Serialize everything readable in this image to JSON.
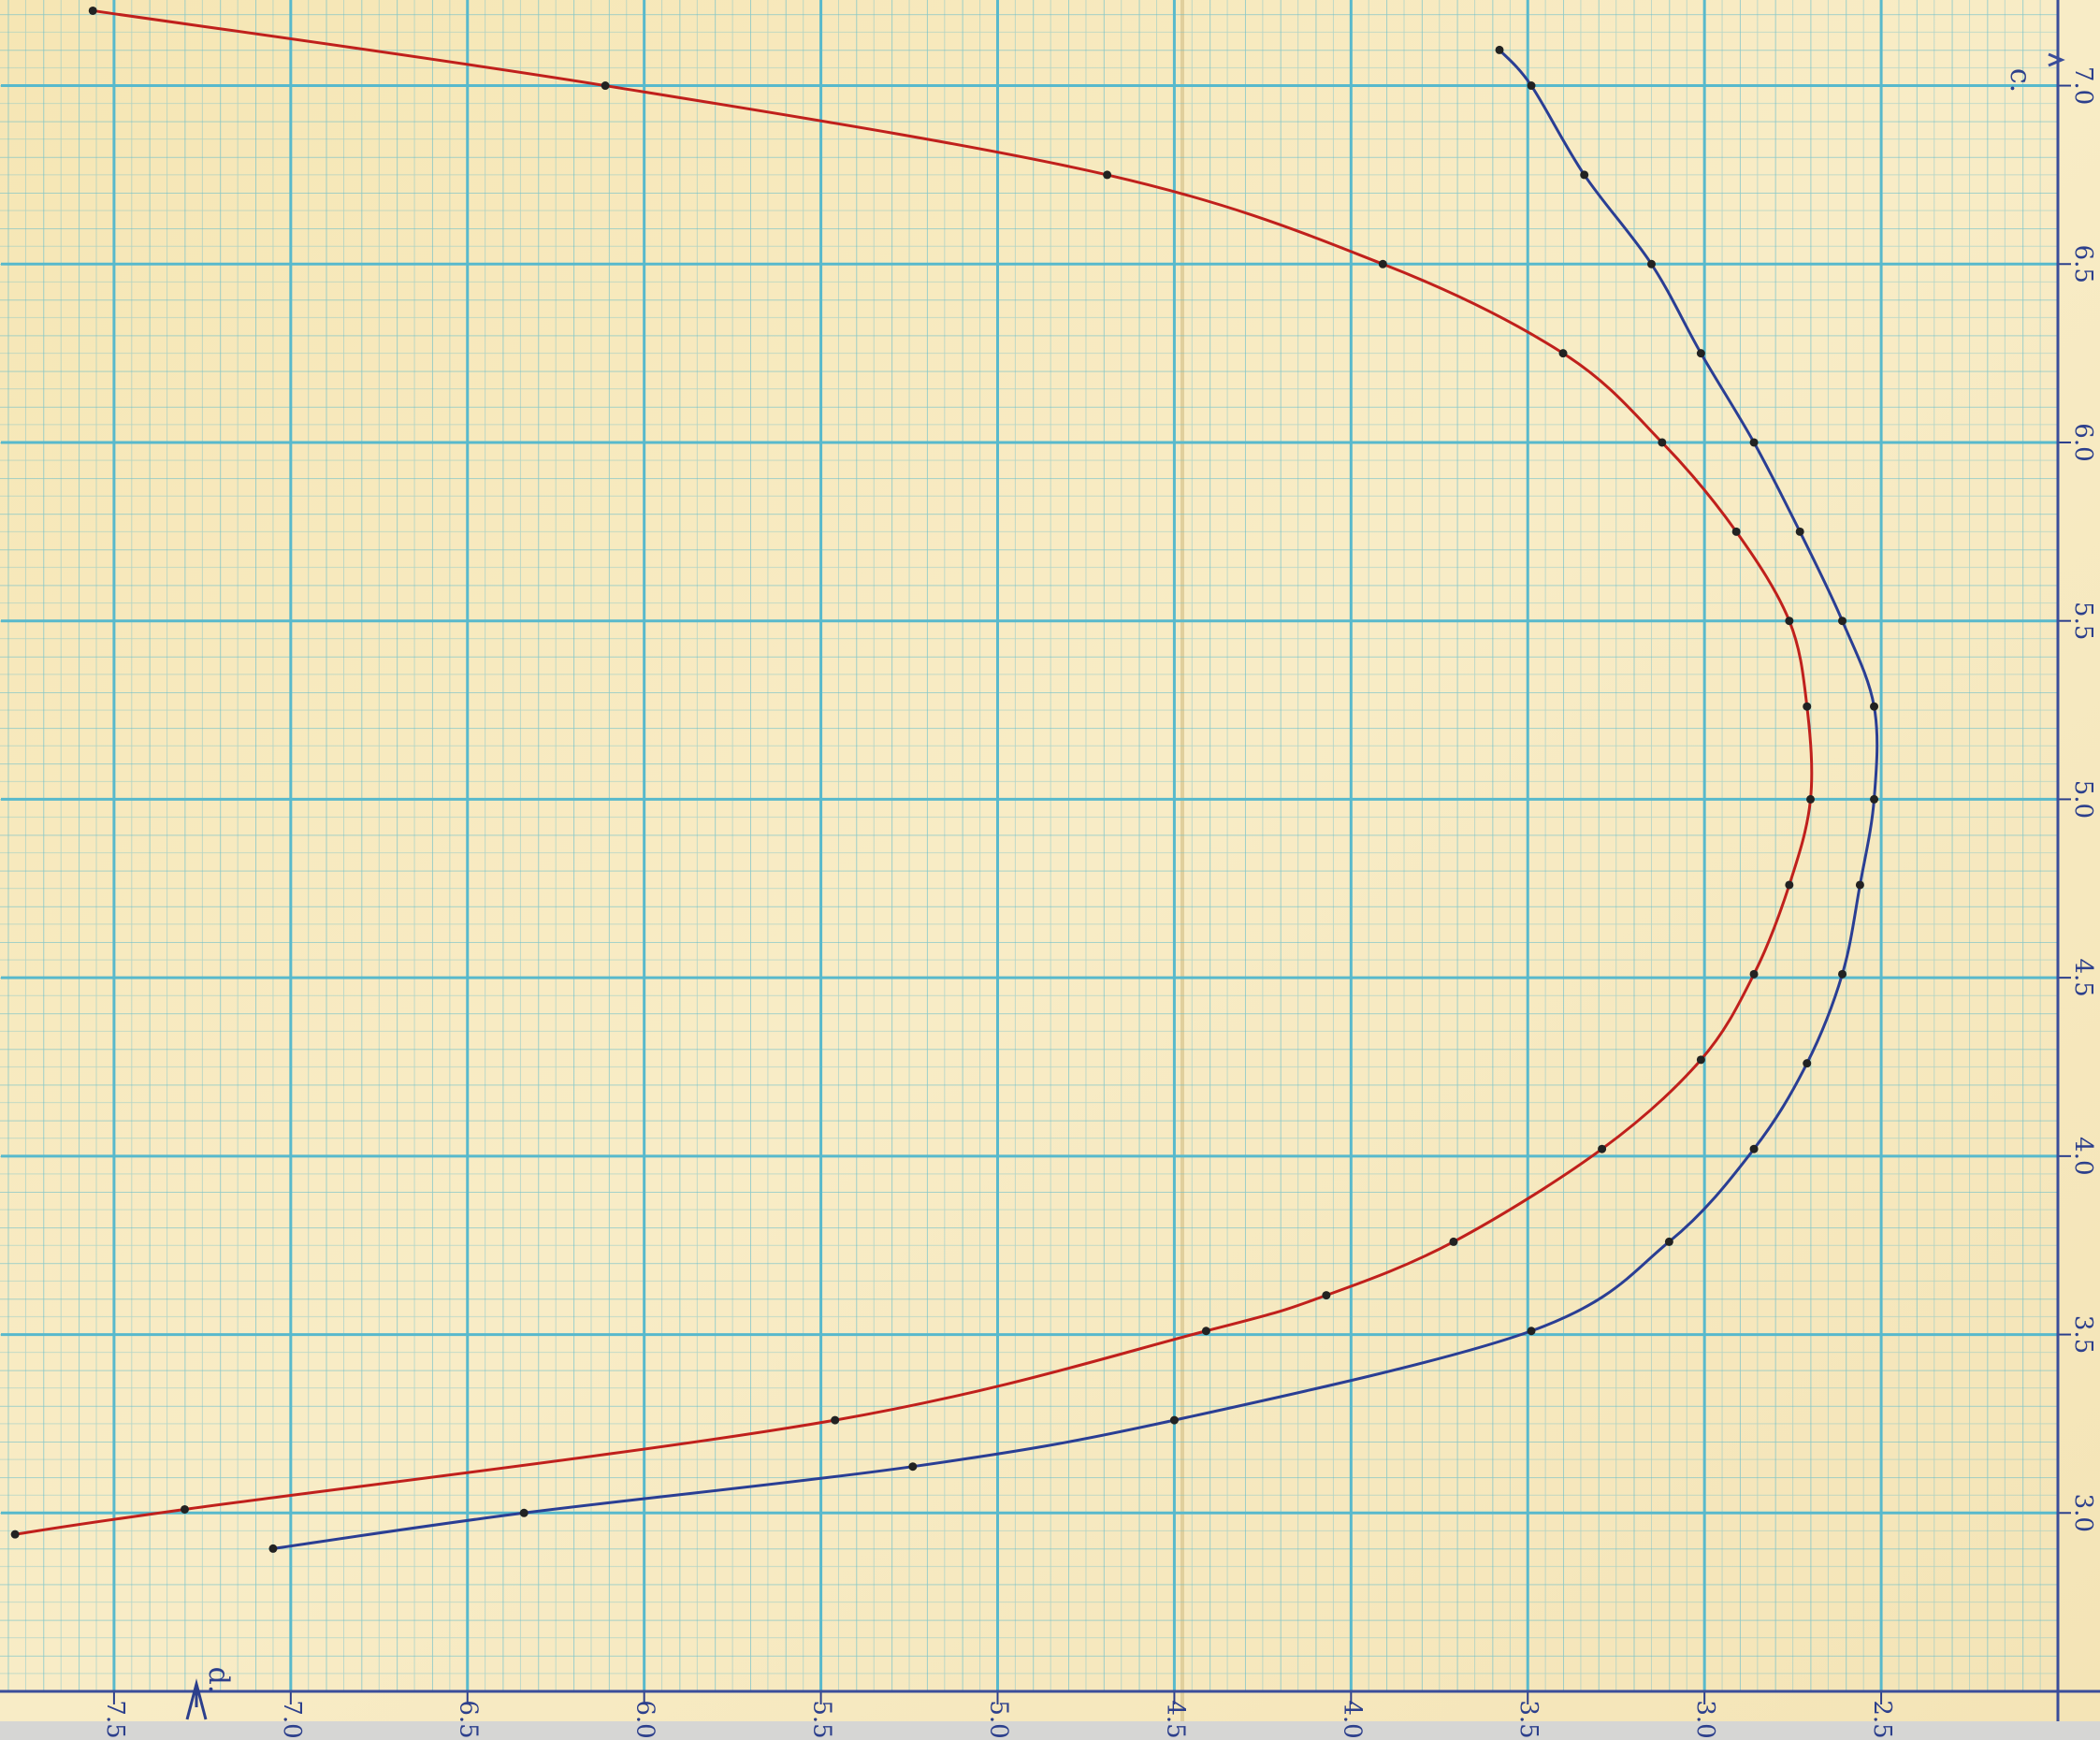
{
  "chart_data": {
    "type": "line",
    "x_label": "d.",
    "y_label": "c.",
    "xlim": [
      7.82,
      2.0
    ],
    "ylim": [
      2.5,
      7.24
    ],
    "xticks": [
      7.5,
      {
        "value": 7,
        "label": "7.0"
      },
      6.5,
      {
        "value": 6,
        "label": "6.0"
      },
      5.5,
      {
        "value": 5,
        "label": "5.0"
      },
      4.5,
      {
        "value": 4,
        "label": "4.0"
      },
      3.5,
      {
        "value": 3,
        "label": "3.0"
      },
      2.5
    ],
    "yticks": [
      {
        "value": 3,
        "label": "3.0"
      },
      3.5,
      {
        "value": 4,
        "label": "4.0"
      },
      4.5,
      {
        "value": 5,
        "label": "5.0"
      },
      5.5,
      {
        "value": 6,
        "label": "6.0"
      },
      6.5,
      {
        "value": 7,
        "label": "7.0"
      }
    ],
    "grid": true,
    "series": [
      {
        "color": "#c0201c",
        "x": [
          7.56,
          6.11,
          4.69,
          3.91,
          3.4,
          3.12,
          2.91,
          2.76,
          2.71,
          2.7,
          2.76,
          2.86,
          3.01,
          3.29,
          3.71,
          4.07,
          4.41,
          5.46,
          7.3,
          7.78
        ],
        "values": [
          7.21,
          7.0,
          6.75,
          6.5,
          6.25,
          6.0,
          5.75,
          5.5,
          5.26,
          5.0,
          4.76,
          4.51,
          4.27,
          4.02,
          3.76,
          3.61,
          3.51,
          3.26,
          3.01,
          2.94
        ]
      },
      {
        "color": "#2a3e94",
        "x": [
          3.58,
          3.49,
          3.34,
          3.15,
          3.01,
          2.86,
          2.73,
          2.61,
          2.52,
          2.52,
          2.56,
          2.61,
          2.71,
          2.86,
          3.1,
          3.49,
          4.5,
          5.24,
          6.34,
          7.05
        ],
        "values": [
          7.1,
          7.0,
          6.75,
          6.5,
          6.25,
          6.0,
          5.75,
          5.5,
          5.26,
          5.0,
          4.76,
          4.51,
          4.26,
          4.02,
          3.76,
          3.51,
          3.26,
          3.13,
          3.0,
          2.9
        ]
      }
    ]
  }
}
